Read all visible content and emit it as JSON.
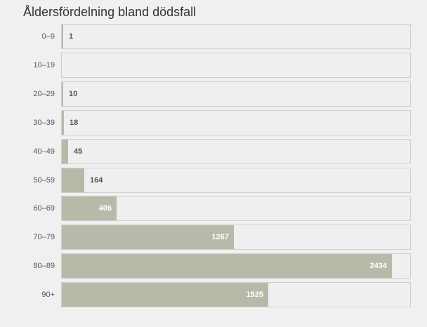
{
  "chart_data": {
    "type": "bar",
    "orientation": "horizontal",
    "title": "Åldersfördelning bland dödsfall",
    "categories": [
      "0–9",
      "10–19",
      "20–29",
      "30–39",
      "40–49",
      "50–59",
      "60–69",
      "70–79",
      "80–89",
      "90+"
    ],
    "values": [
      1,
      0,
      10,
      18,
      45,
      164,
      406,
      1267,
      2434,
      1525
    ],
    "value_labels": [
      "1",
      "",
      "10",
      "18",
      "45",
      "164",
      "406",
      "1267",
      "2434",
      "1525"
    ],
    "xlim": [
      0,
      2570
    ],
    "grid": false,
    "legend": "none",
    "colors": {
      "bar": "#b9b9aa",
      "track": "#efefef",
      "track_border": "#cfcfcf",
      "label_inside": "#ffffff",
      "label_outside": "#555555"
    }
  }
}
